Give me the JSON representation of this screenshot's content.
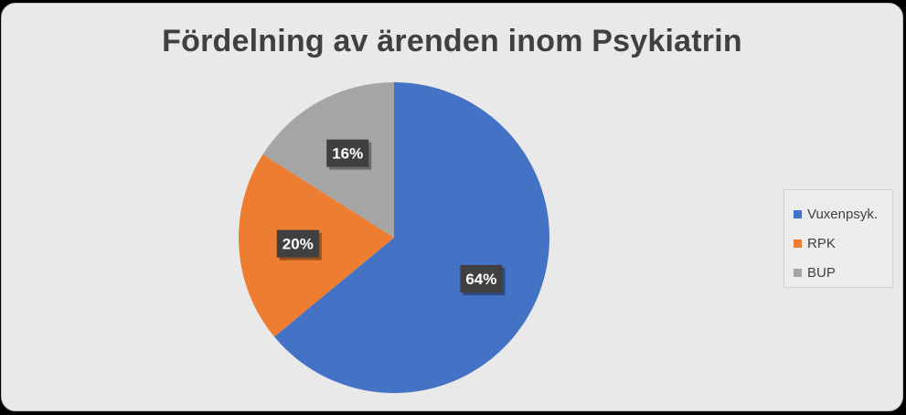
{
  "chart_data": {
    "type": "pie",
    "title": "Fördelning av ärenden inom Psykiatrin",
    "categories": [
      "Vuxenpsyk.",
      "RPK",
      "BUP"
    ],
    "values": [
      64,
      20,
      16
    ],
    "labels": [
      "64%",
      "20%",
      "16%"
    ],
    "colors": [
      "#4472c4",
      "#ed7d31",
      "#a5a5a5"
    ],
    "legend": "right"
  }
}
